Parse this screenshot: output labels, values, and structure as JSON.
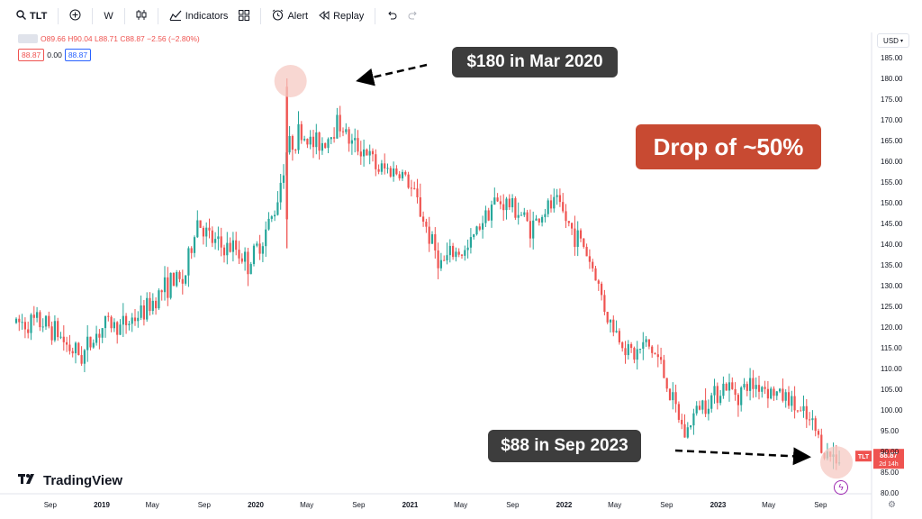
{
  "toolbar": {
    "symbol": "TLT",
    "interval": "W",
    "indicators_label": "Indicators",
    "alert_label": "Alert",
    "replay_label": "Replay"
  },
  "legend": {
    "ohlc": "O89.66 H90.04 L88.71 C88.87 −2.56 (−2.80%)",
    "bid": "88.87",
    "spread": "0.00",
    "ask": "88.87"
  },
  "currency": "USD",
  "last_price": {
    "symbol": "TLT",
    "value": "88.87",
    "countdown": "2d 14h"
  },
  "callouts": {
    "peak": "$180 in Mar 2020",
    "drop": "Drop of ~50%",
    "current": "$88 in Sep 2023"
  },
  "branding": "TradingView",
  "colors": {
    "up": "#26a69a",
    "down": "#ef5350",
    "callout_dark": "#3d3d3d",
    "callout_red": "#c84a32",
    "highlight": "#f6c9c3"
  },
  "chart_data": {
    "type": "candlestick",
    "symbol": "TLT",
    "interval": "W",
    "ylim": [
      80,
      188
    ],
    "y_ticks": [
      80,
      85,
      90,
      95,
      100,
      105,
      110,
      115,
      120,
      125,
      130,
      135,
      140,
      145,
      150,
      155,
      160,
      165,
      170,
      175,
      180,
      185
    ],
    "x_ticks": [
      {
        "label": "Sep",
        "date": "2018-09"
      },
      {
        "label": "2019",
        "date": "2019-01"
      },
      {
        "label": "May",
        "date": "2019-05"
      },
      {
        "label": "Sep",
        "date": "2019-09"
      },
      {
        "label": "2020",
        "date": "2020-01"
      },
      {
        "label": "May",
        "date": "2020-05"
      },
      {
        "label": "Sep",
        "date": "2020-09"
      },
      {
        "label": "2021",
        "date": "2021-01"
      },
      {
        "label": "May",
        "date": "2021-05"
      },
      {
        "label": "Sep",
        "date": "2021-09"
      },
      {
        "label": "2022",
        "date": "2022-01"
      },
      {
        "label": "May",
        "date": "2022-05"
      },
      {
        "label": "Sep",
        "date": "2022-09"
      },
      {
        "label": "2023",
        "date": "2023-01"
      },
      {
        "label": "May",
        "date": "2023-05"
      },
      {
        "label": "Sep",
        "date": "2023-09"
      }
    ],
    "price_path": [
      [
        "2018-06",
        121
      ],
      [
        "2018-07",
        121
      ],
      [
        "2018-08",
        121
      ],
      [
        "2018-09",
        119
      ],
      [
        "2018-10",
        115
      ],
      [
        "2018-11",
        113
      ],
      [
        "2018-12",
        118
      ],
      [
        "2019-01",
        121
      ],
      [
        "2019-02",
        120
      ],
      [
        "2019-03",
        122
      ],
      [
        "2019-04",
        124
      ],
      [
        "2019-05",
        128
      ],
      [
        "2019-06",
        131
      ],
      [
        "2019-07",
        131
      ],
      [
        "2019-08",
        146
      ],
      [
        "2019-09",
        141
      ],
      [
        "2019-10",
        139
      ],
      [
        "2019-11",
        139
      ],
      [
        "2019-12",
        135
      ],
      [
        "2020-01",
        141
      ],
      [
        "2020-02",
        148
      ],
      [
        "2020-03",
        163
      ],
      [
        "2020-04",
        167
      ],
      [
        "2020-05",
        164
      ],
      [
        "2020-06",
        165
      ],
      [
        "2020-07",
        170
      ],
      [
        "2020-08",
        164
      ],
      [
        "2020-09",
        163
      ],
      [
        "2020-10",
        158
      ],
      [
        "2020-11",
        158
      ],
      [
        "2020-12",
        157
      ],
      [
        "2021-01",
        151
      ],
      [
        "2021-02",
        142
      ],
      [
        "2021-03",
        135
      ],
      [
        "2021-04",
        138
      ],
      [
        "2021-05",
        138
      ],
      [
        "2021-06",
        145
      ],
      [
        "2021-07",
        150
      ],
      [
        "2021-08",
        150
      ],
      [
        "2021-09",
        148
      ],
      [
        "2021-10",
        144
      ],
      [
        "2021-11",
        148
      ],
      [
        "2021-12",
        150
      ],
      [
        "2022-01",
        144
      ],
      [
        "2022-02",
        140
      ],
      [
        "2022-03",
        133
      ],
      [
        "2022-04",
        122
      ],
      [
        "2022-05",
        117
      ],
      [
        "2022-06",
        113
      ],
      [
        "2022-07",
        116
      ],
      [
        "2022-08",
        112
      ],
      [
        "2022-09",
        102
      ],
      [
        "2022-10",
        94
      ],
      [
        "2022-11",
        101
      ],
      [
        "2022-12",
        103
      ],
      [
        "2023-01",
        106
      ],
      [
        "2023-02",
        104
      ],
      [
        "2023-03",
        106
      ],
      [
        "2023-04",
        106
      ],
      [
        "2023-05",
        104
      ],
      [
        "2023-06",
        103
      ],
      [
        "2023-07",
        99
      ],
      [
        "2023-08",
        96
      ],
      [
        "2023-09",
        89
      ]
    ],
    "annotations": [
      {
        "text": "$180 in Mar 2020",
        "date": "2020-03",
        "value": 180
      },
      {
        "text": "$88 in Sep 2023",
        "date": "2023-09",
        "value": 88
      }
    ]
  }
}
